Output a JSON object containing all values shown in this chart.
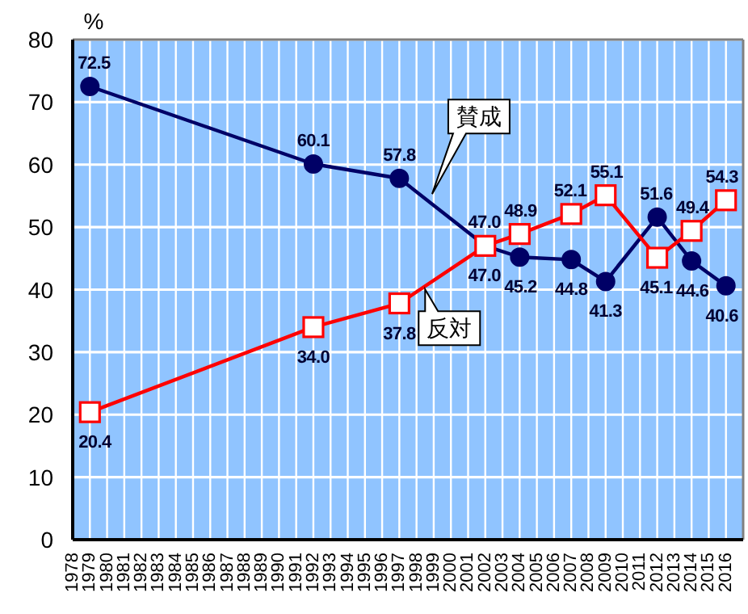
{
  "chart_data": {
    "type": "line",
    "ylabel": "%",
    "x": [
      1979,
      1992,
      1997,
      2002,
      2004,
      2007,
      2009,
      2012,
      2014,
      2016
    ],
    "series": [
      {
        "name": "賛成",
        "color": "#000066",
        "marker": "circle",
        "values": [
          72.5,
          60.1,
          57.8,
          47.0,
          45.2,
          44.8,
          41.3,
          51.6,
          44.6,
          40.6
        ],
        "value_labels": [
          "72.5",
          "60.1",
          "57.8",
          "47.0",
          "45.2",
          "44.8",
          "41.3",
          "51.6",
          "44.6",
          "40.6"
        ]
      },
      {
        "name": "反対",
        "color": "#ff0000",
        "marker": "square",
        "values": [
          20.4,
          34.0,
          37.8,
          47.0,
          48.9,
          52.1,
          55.1,
          45.1,
          49.4,
          54.3
        ],
        "value_labels": [
          "20.4",
          "34.0",
          "37.8",
          "47.0",
          "48.9",
          "52.1",
          "55.1",
          "45.1",
          "49.4",
          "54.3"
        ]
      }
    ],
    "xlim": [
      1978,
      2017
    ],
    "xticks": [
      1978,
      1979,
      1980,
      1981,
      1982,
      1983,
      1984,
      1985,
      1986,
      1987,
      1988,
      1989,
      1990,
      1991,
      1992,
      1993,
      1994,
      1995,
      1996,
      1997,
      1998,
      1999,
      2000,
      2001,
      2002,
      2003,
      2004,
      2005,
      2006,
      2007,
      2008,
      2009,
      2010,
      2011,
      2012,
      2013,
      2014,
      2015,
      2016
    ],
    "ylim": [
      0,
      80
    ],
    "yticks": [
      0,
      10,
      20,
      30,
      40,
      50,
      60,
      70,
      80
    ],
    "grid": true,
    "line_style": "solid"
  }
}
